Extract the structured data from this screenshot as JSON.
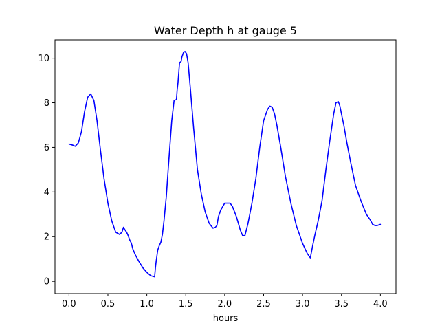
{
  "chart_data": {
    "type": "line",
    "title": "Water Depth h at gauge 5",
    "xlabel": "hours",
    "ylabel": "",
    "xlim": [
      -0.18,
      4.2
    ],
    "ylim": [
      -0.55,
      10.82
    ],
    "xticks": [
      0.0,
      0.5,
      1.0,
      1.5,
      2.0,
      2.5,
      3.0,
      3.5,
      4.0
    ],
    "xtick_labels": [
      "0.0",
      "0.5",
      "1.0",
      "1.5",
      "2.0",
      "2.5",
      "3.0",
      "3.5",
      "4.0"
    ],
    "yticks": [
      0,
      2,
      4,
      6,
      8,
      10
    ],
    "ytick_labels": [
      "0",
      "2",
      "4",
      "6",
      "8",
      "10"
    ],
    "grid": false,
    "line_color": "#0000ff",
    "series": [
      {
        "x": [
          0.0,
          0.05,
          0.08,
          0.12,
          0.16,
          0.2,
          0.24,
          0.28,
          0.32,
          0.36,
          0.4,
          0.45,
          0.5,
          0.55,
          0.6,
          0.65,
          0.68,
          0.7,
          0.72,
          0.74,
          0.76,
          0.78,
          0.8,
          0.82,
          0.85,
          0.9,
          0.95,
          1.0,
          1.05,
          1.1,
          1.11,
          1.12,
          1.14,
          1.16,
          1.18,
          1.2,
          1.22,
          1.25,
          1.28,
          1.32,
          1.35,
          1.38,
          1.39,
          1.4,
          1.42,
          1.44,
          1.45,
          1.47,
          1.49,
          1.51,
          1.53,
          1.56,
          1.6,
          1.65,
          1.7,
          1.75,
          1.8,
          1.85,
          1.88,
          1.9,
          1.92,
          1.95,
          2.0,
          2.03,
          2.07,
          2.1,
          2.15,
          2.2,
          2.23,
          2.26,
          2.3,
          2.35,
          2.4,
          2.45,
          2.5,
          2.55,
          2.58,
          2.61,
          2.64,
          2.67,
          2.72,
          2.78,
          2.85,
          2.92,
          3.0,
          3.06,
          3.1,
          3.13,
          3.16,
          3.2,
          3.25,
          3.3,
          3.35,
          3.4,
          3.43,
          3.46,
          3.48,
          3.5,
          3.53,
          3.57,
          3.62,
          3.68,
          3.75,
          3.82,
          3.87,
          3.9,
          3.93,
          3.96,
          4.0
        ],
        "y": [
          6.15,
          6.1,
          6.05,
          6.2,
          6.7,
          7.6,
          8.25,
          8.4,
          8.1,
          7.2,
          6.0,
          4.6,
          3.5,
          2.7,
          2.2,
          2.1,
          2.2,
          2.42,
          2.3,
          2.2,
          2.05,
          1.85,
          1.72,
          1.45,
          1.2,
          0.88,
          0.6,
          0.4,
          0.25,
          0.2,
          0.6,
          0.9,
          1.4,
          1.6,
          1.75,
          2.1,
          2.7,
          3.8,
          5.3,
          7.2,
          8.1,
          8.15,
          8.6,
          8.9,
          9.8,
          9.85,
          10.05,
          10.25,
          10.3,
          10.2,
          9.8,
          8.6,
          6.9,
          5.0,
          3.9,
          3.1,
          2.6,
          2.38,
          2.42,
          2.5,
          2.9,
          3.2,
          3.5,
          3.5,
          3.5,
          3.35,
          2.9,
          2.3,
          2.05,
          2.05,
          2.6,
          3.5,
          4.6,
          6.0,
          7.2,
          7.7,
          7.85,
          7.8,
          7.5,
          7.0,
          6.0,
          4.7,
          3.5,
          2.5,
          1.7,
          1.25,
          1.05,
          1.6,
          2.1,
          2.7,
          3.6,
          5.0,
          6.3,
          7.5,
          8.0,
          8.05,
          7.85,
          7.5,
          7.0,
          6.2,
          5.3,
          4.3,
          3.6,
          3.0,
          2.75,
          2.55,
          2.5,
          2.5,
          2.55
        ]
      }
    ]
  }
}
